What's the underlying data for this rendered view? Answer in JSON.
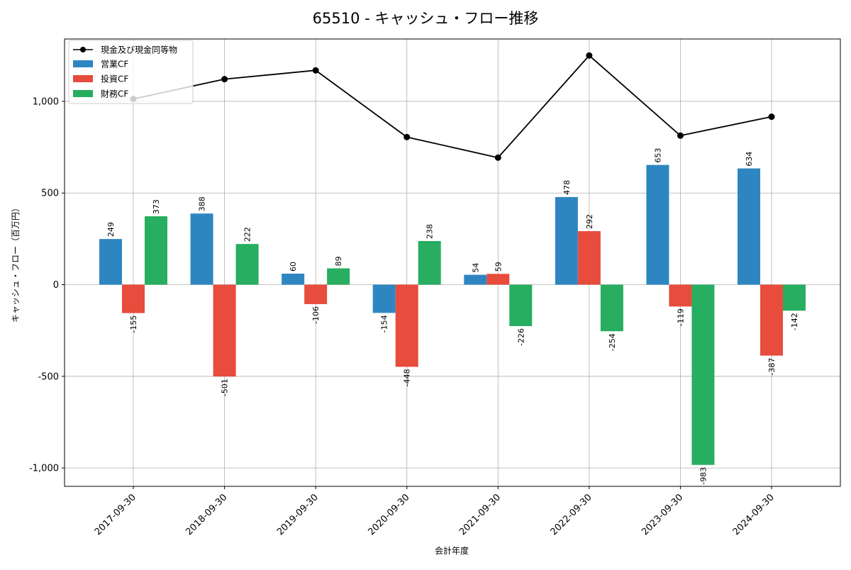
{
  "chart_data": {
    "type": "bar",
    "title": "65510 - キャッシュ・フロー推移",
    "xlabel": "会計年度",
    "ylabel": "キャッシュ・フロー（百万円）",
    "categories": [
      "2017-09-30",
      "2018-09-30",
      "2019-09-30",
      "2020-09-30",
      "2021-09-30",
      "2022-09-30",
      "2023-09-30",
      "2024-09-30"
    ],
    "series": [
      {
        "name": "営業CF",
        "kind": "bar",
        "color": "#2e86c1",
        "values": [
          249,
          388,
          60,
          -154,
          54,
          478,
          653,
          634
        ],
        "labels": [
          "249",
          "388",
          "60",
          "-154",
          "54",
          "478",
          "653",
          "634"
        ]
      },
      {
        "name": "投資CF",
        "kind": "bar",
        "color": "#e74c3c",
        "values": [
          -155,
          -501,
          -106,
          -448,
          59,
          292,
          -119,
          -387
        ],
        "labels": [
          "-155",
          "-501",
          "-106",
          "-448",
          "59",
          "292",
          "-119",
          "-387"
        ]
      },
      {
        "name": "財務CF",
        "kind": "bar",
        "color": "#27ae60",
        "values": [
          373,
          222,
          89,
          238,
          -226,
          -254,
          -983,
          -142
        ],
        "labels": [
          "373",
          "222",
          "89",
          "238",
          "-226",
          "-254",
          "-983",
          "-142"
        ]
      },
      {
        "name": "現金及び現金同等物",
        "kind": "line",
        "color": "#000000",
        "values": [
          1013,
          1121,
          1169,
          805,
          693,
          1250,
          813,
          916
        ]
      }
    ],
    "ylim": [
      -1100,
      1340
    ],
    "yticks": [
      -1000,
      -500,
      0,
      500,
      1000
    ],
    "ytick_labels": [
      "-1,000",
      "-500",
      "0",
      "500",
      "1,000"
    ],
    "grid": true,
    "legend_position": "top-left"
  }
}
